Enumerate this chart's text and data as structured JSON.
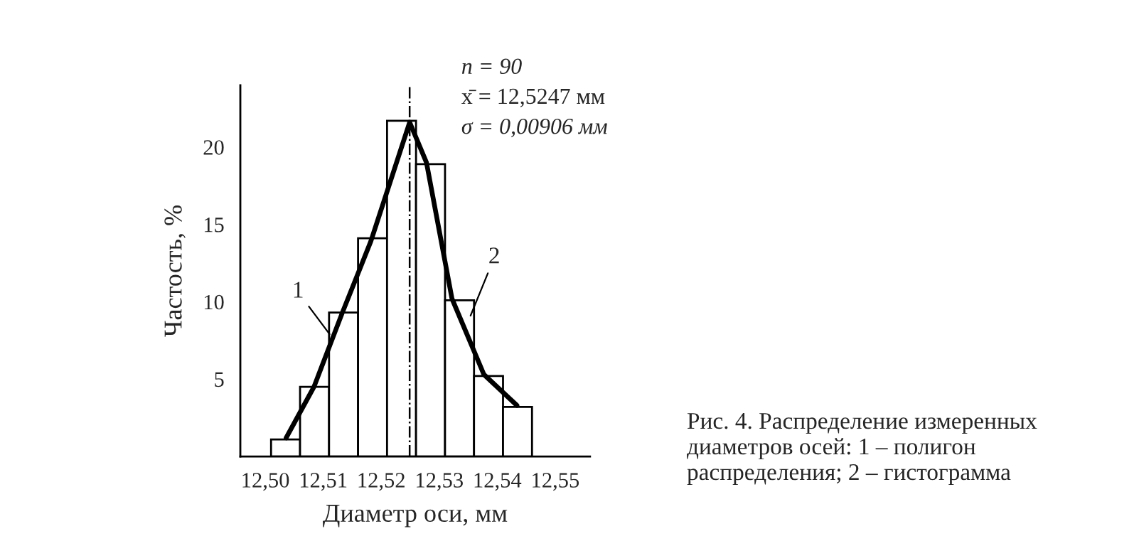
{
  "chart_data": {
    "type": "histogram",
    "xlabel": "Диаметр оси, мм",
    "ylabel": "Частость, %",
    "bins": [
      12.501,
      12.506,
      12.511,
      12.516,
      12.521,
      12.526,
      12.531,
      12.536,
      12.541,
      12.546
    ],
    "values": [
      1.1,
      4.5,
      9.3,
      14.1,
      21.7,
      18.9,
      10.1,
      5.2,
      3.2
    ],
    "color": "#ffffff",
    "series": [
      {
        "type": "line",
        "color": "#000000",
        "x": [
          12.5036,
          12.5084,
          12.5133,
          12.5182,
          12.5249,
          12.5278,
          12.5322,
          12.5377,
          12.5434
        ],
        "values": [
          1.2,
          4.5,
          9.3,
          13.9,
          21.6,
          19.0,
          10.2,
          5.3,
          3.3
        ]
      }
    ],
    "xlim": [
      12.4957,
      12.556
    ],
    "ylim": [
      0,
      24
    ],
    "xticks": [
      {
        "value": 12.5,
        "label": "12,50"
      },
      {
        "value": 12.51,
        "label": "12,51"
      },
      {
        "value": 12.52,
        "label": "12,52"
      },
      {
        "value": 12.53,
        "label": "12,53"
      },
      {
        "value": 12.54,
        "label": "12,54"
      },
      {
        "value": 12.55,
        "label": "12,55"
      }
    ],
    "yticks": [
      5,
      10,
      15,
      20
    ],
    "ref_lines": [
      {
        "axis": "x",
        "value": 12.5249,
        "color": "#000000"
      }
    ],
    "grid": false,
    "annotations": [
      {
        "text": "1",
        "x": 12.5111,
        "y": 7.9
      },
      {
        "text": "2",
        "x": 12.5354,
        "y": 9.1
      },
      "n = 90",
      "x̄ = 12,5247 мм",
      "σ = 0,00906 мм",
      "Рис. 4. Распределение измеренных диаметров осей: 1 – полигон распределения; 2 – гистограмма"
    ]
  }
}
